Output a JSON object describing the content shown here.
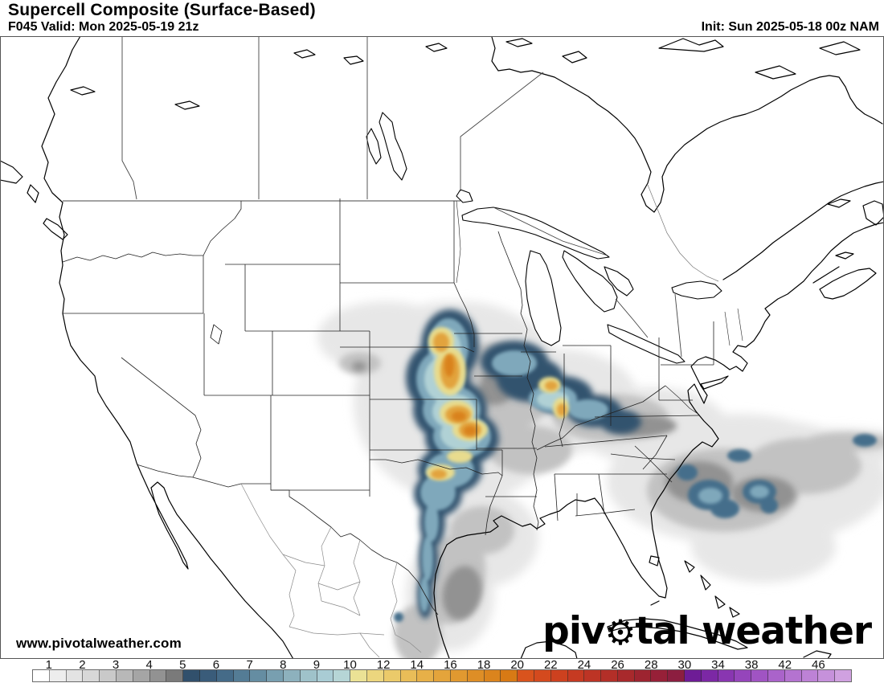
{
  "header": {
    "title": "Supercell Composite (Surface-Based)",
    "forecast_valid": "F045 Valid: Mon 2025-05-19 21z",
    "init": "Init: Sun 2025-05-18 00z NAM"
  },
  "watermark": "www.pivotalweather.com",
  "logo": {
    "part1": "piv",
    "gear_icon": "⚙",
    "part2": "tal weather"
  },
  "colorbar": {
    "labels": [
      "1",
      "2",
      "3",
      "4",
      "5",
      "6",
      "7",
      "8",
      "9",
      "10",
      "12",
      "14",
      "16",
      "18",
      "20",
      "22",
      "24",
      "26",
      "28",
      "30",
      "34",
      "38",
      "42",
      "46"
    ],
    "label_boundary_index": [
      1,
      3,
      5,
      7,
      9,
      11,
      13,
      15,
      17,
      19,
      21,
      23,
      25,
      27,
      29,
      31,
      33,
      35,
      37,
      39,
      41,
      43,
      45,
      47
    ],
    "segment_count": 49,
    "segments": [
      "#ffffff",
      "#ededed",
      "#e3e3e3",
      "#d8d8d8",
      "#c9c9c9",
      "#b8b8b8",
      "#a5a5a5",
      "#929292",
      "#7a7a7a",
      "#31506c",
      "#3a5c7a",
      "#456b88",
      "#547c95",
      "#658da2",
      "#789fb0",
      "#8db1bd",
      "#9fc2ca",
      "#a9ccd4",
      "#b6d5d6",
      "#ebe295",
      "#ecd67e",
      "#ebca6a",
      "#e9bd58",
      "#e7b048",
      "#e4a43b",
      "#e19930",
      "#de8e26",
      "#db841d",
      "#d87a15",
      "#d9531d",
      "#d44a1e",
      "#cd411f",
      "#c63a22",
      "#bd3425",
      "#b32f28",
      "#a8292c",
      "#9d2430",
      "#972038",
      "#8c1e40",
      "#6e1c96",
      "#7c28a5",
      "#8936b1",
      "#9545bb",
      "#a054c3",
      "#aa63ca",
      "#b473d0",
      "#bd82d6",
      "#c691db",
      "#d0a1e0"
    ],
    "accent_colors": {
      "gray_shading": "#aeaeae",
      "blue_shading": "#33536e",
      "teal_shading": "#7fa8bb",
      "yellow_core": "#e8dc8e",
      "orange_core": "#e2a33c"
    }
  },
  "map": {
    "kind": "filled-contour supercell composite forecast map over North America",
    "shaded_regions": [
      {
        "area": "Central Plains into Mid-South (NE/KS/OK/MO/AR with band to TN/KY)",
        "approx_peak": "18-22",
        "appearance": "blue ring with yellow-orange cores"
      },
      {
        "area": "South Texas coast / northeast Mexico",
        "approx_peak": "6-8",
        "appearance": "narrow blue coastal strip with gray halo over western Gulf"
      },
      {
        "area": "Western Atlantic off Southeast US coast",
        "approx_peak": "5-7",
        "appearance": "broad gray area with embedded blue maxima"
      },
      {
        "area": "Western Nebraska/Kansas band",
        "approx_peak": "3-5",
        "appearance": "light gray band with small dark core"
      }
    ]
  }
}
